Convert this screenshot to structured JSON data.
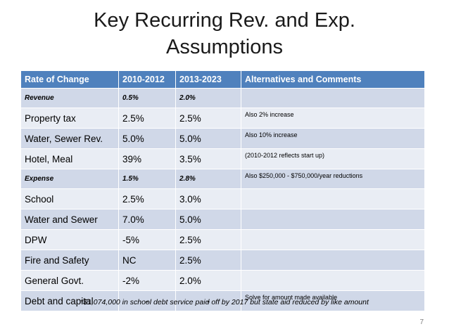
{
  "slide": {
    "title_line1": "Key Recurring Rev. and Exp.",
    "title_line2": "Assumptions",
    "footnote": "*$1,074,000 in school debt service paid off by 2017 but state aid reduced by like amount",
    "page_number": "7"
  },
  "table": {
    "headers": [
      "Rate of Change",
      "2010-2012",
      "2013-2023",
      "Alternatives and Comments"
    ],
    "rows": [
      {
        "label": "Revenue",
        "p1": "0.5%",
        "p2": "2.0%",
        "note": ""
      },
      {
        "label": "Property tax",
        "p1": "2.5%",
        "p2": "2.5%",
        "note": "Also 2% increase"
      },
      {
        "label": "Water, Sewer Rev.",
        "p1": "5.0%",
        "p2": "5.0%",
        "note": "Also 10% increase"
      },
      {
        "label": "Hotel, Meal",
        "p1": "39%",
        "p2": "3.5%",
        "note": "(2010-2012 reflects start up)"
      },
      {
        "label": "Expense",
        "p1": "1.5%",
        "p2": "2.8%",
        "note": "Also $250,000 - $750,000/year reductions"
      },
      {
        "label": "School",
        "p1": "2.5%",
        "p2": "3.0%",
        "note": ""
      },
      {
        "label": "Water and Sewer",
        "p1": "7.0%",
        "p2": "5.0%",
        "note": ""
      },
      {
        "label": "DPW",
        "p1": "-5%",
        "p2": "2.5%",
        "note": ""
      },
      {
        "label": "Fire and Safety",
        "p1": "NC",
        "p2": "2.5%",
        "note": ""
      },
      {
        "label": "General Govt.",
        "p1": "-2%",
        "p2": "2.0%",
        "note": ""
      },
      {
        "label": "Debt and capital",
        "p1": "-",
        "p2": "-",
        "note": "Solve for amount made available"
      }
    ]
  }
}
